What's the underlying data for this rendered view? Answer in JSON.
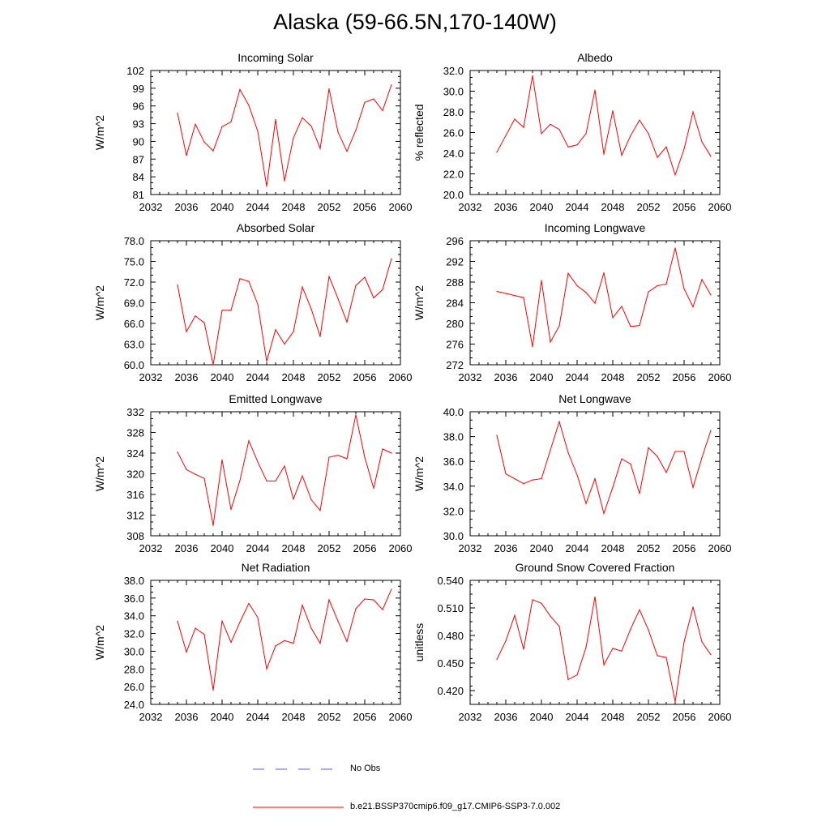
{
  "title": "Alaska (59-66.5N,170-140W)",
  "legend": [
    {
      "label": "No Obs",
      "color": "#5b5bd6",
      "dashed": true
    },
    {
      "label": "b.e21.BSSP370cmip6.f09_g17.CMIP6-SSP3-7.0.002",
      "color": "#ff0000",
      "dashed": false
    }
  ],
  "chart_data": [
    {
      "type": "line",
      "title": "Incoming Solar",
      "xlabel": "",
      "ylabel": "W/m^2",
      "xlim": [
        2032,
        2060
      ],
      "ylim": [
        81,
        102
      ],
      "xticks": [
        2032,
        2036,
        2040,
        2044,
        2048,
        2052,
        2056,
        2060
      ],
      "yticks": [
        "81",
        "84",
        "87",
        "90",
        "93",
        "96",
        "99",
        "102"
      ],
      "series": [
        {
          "color": "#ff0000",
          "x": [
            2035,
            2036,
            2037,
            2038,
            2039,
            2040,
            2041,
            2042,
            2043,
            2044,
            2045,
            2046,
            2047,
            2048,
            2049,
            2050,
            2051,
            2052,
            2053,
            2054,
            2055,
            2056,
            2057,
            2058,
            2059
          ],
          "y": [
            94.8,
            87.6,
            92.9,
            89.9,
            88.4,
            92.5,
            93.3,
            98.8,
            96.1,
            91.7,
            82.4,
            93.7,
            83.3,
            90.6,
            94.0,
            92.6,
            88.8,
            98.9,
            91.6,
            88.3,
            91.9,
            96.6,
            97.2,
            95.2,
            99.6
          ]
        }
      ]
    },
    {
      "type": "line",
      "title": "Albedo",
      "xlabel": "",
      "ylabel": "% reflected",
      "xlim": [
        2032,
        2060
      ],
      "ylim": [
        20.0,
        32.0
      ],
      "xticks": [
        2032,
        2036,
        2040,
        2044,
        2048,
        2052,
        2056,
        2060
      ],
      "yticks": [
        "20.0",
        "22.0",
        "24.0",
        "26.0",
        "28.0",
        "30.0",
        "32.0"
      ],
      "series": [
        {
          "color": "#ff0000",
          "x": [
            2035,
            2036,
            2037,
            2038,
            2039,
            2040,
            2041,
            2042,
            2043,
            2044,
            2045,
            2046,
            2047,
            2048,
            2049,
            2050,
            2051,
            2052,
            2053,
            2054,
            2055,
            2056,
            2057,
            2058,
            2059
          ],
          "y": [
            24.1,
            25.7,
            27.3,
            26.5,
            31.5,
            25.9,
            26.8,
            26.3,
            24.6,
            24.8,
            25.9,
            30.1,
            23.9,
            28.1,
            23.8,
            25.7,
            27.2,
            25.9,
            23.6,
            24.6,
            21.9,
            24.4,
            28.0,
            25.1,
            23.7
          ]
        }
      ]
    },
    {
      "type": "line",
      "title": "Absorbed Solar",
      "xlabel": "",
      "ylabel": "W/m^2",
      "xlim": [
        2032,
        2060
      ],
      "ylim": [
        60.0,
        78.0
      ],
      "xticks": [
        2032,
        2036,
        2040,
        2044,
        2048,
        2052,
        2056,
        2060
      ],
      "yticks": [
        "60.0",
        "63.0",
        "66.0",
        "69.0",
        "72.0",
        "75.0",
        "78.0"
      ],
      "series": [
        {
          "color": "#ff0000",
          "x": [
            2035,
            2036,
            2037,
            2038,
            2039,
            2040,
            2041,
            2042,
            2043,
            2044,
            2045,
            2046,
            2047,
            2048,
            2049,
            2050,
            2051,
            2052,
            2053,
            2054,
            2055,
            2056,
            2057,
            2058,
            2059
          ],
          "y": [
            71.6,
            64.8,
            67.1,
            66.1,
            60.0,
            67.9,
            67.9,
            72.5,
            72.1,
            68.8,
            60.5,
            65.1,
            63.0,
            64.8,
            71.3,
            68.1,
            64.1,
            72.8,
            69.6,
            66.2,
            71.5,
            72.7,
            69.7,
            70.9,
            75.4
          ]
        }
      ]
    },
    {
      "type": "line",
      "title": "Incoming Longwave",
      "xlabel": "",
      "ylabel": "W/m^2",
      "xlim": [
        2032,
        2060
      ],
      "ylim": [
        272,
        296
      ],
      "xticks": [
        2032,
        2036,
        2040,
        2044,
        2048,
        2052,
        2056,
        2060
      ],
      "yticks": [
        "272",
        "276",
        "280",
        "284",
        "288",
        "292",
        "296"
      ],
      "series": [
        {
          "color": "#ff0000",
          "x": [
            2035,
            2036,
            2037,
            2038,
            2039,
            2040,
            2041,
            2042,
            2043,
            2044,
            2045,
            2046,
            2047,
            2048,
            2049,
            2050,
            2051,
            2052,
            2053,
            2054,
            2055,
            2056,
            2057,
            2058,
            2059
          ],
          "y": [
            286.2,
            285.8,
            285.4,
            285.0,
            275.5,
            288.3,
            276.4,
            279.5,
            289.7,
            287.3,
            286.0,
            283.9,
            289.8,
            281.1,
            283.3,
            279.4,
            279.6,
            286.1,
            287.3,
            287.6,
            294.6,
            286.7,
            283.2,
            288.5,
            285.5
          ]
        }
      ]
    },
    {
      "type": "line",
      "title": "Emitted Longwave",
      "xlabel": "",
      "ylabel": "W/m^2",
      "xlim": [
        2032,
        2060
      ],
      "ylim": [
        308,
        332
      ],
      "xticks": [
        2032,
        2036,
        2040,
        2044,
        2048,
        2052,
        2056,
        2060
      ],
      "yticks": [
        "308",
        "312",
        "316",
        "320",
        "324",
        "328",
        "332"
      ],
      "series": [
        {
          "color": "#ff0000",
          "x": [
            2035,
            2036,
            2037,
            2038,
            2039,
            2040,
            2041,
            2042,
            2043,
            2044,
            2045,
            2046,
            2047,
            2048,
            2049,
            2050,
            2051,
            2052,
            2053,
            2054,
            2055,
            2056,
            2057,
            2058,
            2059
          ],
          "y": [
            324.2,
            320.8,
            319.9,
            319.1,
            310.0,
            322.7,
            313.1,
            318.7,
            326.4,
            322.3,
            318.6,
            318.6,
            321.5,
            315.1,
            319.6,
            315.0,
            312.9,
            323.2,
            323.6,
            322.9,
            331.4,
            323.2,
            317.2,
            324.8,
            324.0
          ]
        }
      ]
    },
    {
      "type": "line",
      "title": "Net Longwave",
      "xlabel": "",
      "ylabel": "W/m^2",
      "xlim": [
        2032,
        2060
      ],
      "ylim": [
        30.0,
        40.0
      ],
      "xticks": [
        2032,
        2036,
        2040,
        2044,
        2048,
        2052,
        2056,
        2060
      ],
      "yticks": [
        "30.0",
        "32.0",
        "34.0",
        "36.0",
        "38.0",
        "40.0"
      ],
      "series": [
        {
          "color": "#ff0000",
          "x": [
            2035,
            2036,
            2037,
            2038,
            2039,
            2040,
            2041,
            2042,
            2043,
            2044,
            2045,
            2046,
            2047,
            2048,
            2049,
            2050,
            2051,
            2052,
            2053,
            2054,
            2055,
            2056,
            2057,
            2058,
            2059
          ],
          "y": [
            38.1,
            35.0,
            34.6,
            34.2,
            34.5,
            34.6,
            36.9,
            39.2,
            36.7,
            34.9,
            32.6,
            34.6,
            31.8,
            33.9,
            36.2,
            35.8,
            33.4,
            37.1,
            36.4,
            35.1,
            36.8,
            36.8,
            33.9,
            36.3,
            38.5
          ]
        }
      ]
    },
    {
      "type": "line",
      "title": "Net Radiation",
      "xlabel": "",
      "ylabel": "W/m^2",
      "xlim": [
        2032,
        2060
      ],
      "ylim": [
        24.0,
        38.0
      ],
      "xticks": [
        2032,
        2036,
        2040,
        2044,
        2048,
        2052,
        2056,
        2060
      ],
      "yticks": [
        "24.0",
        "26.0",
        "28.0",
        "30.0",
        "32.0",
        "34.0",
        "36.0",
        "38.0"
      ],
      "series": [
        {
          "color": "#ff0000",
          "x": [
            2035,
            2036,
            2037,
            2038,
            2039,
            2040,
            2041,
            2042,
            2043,
            2044,
            2045,
            2046,
            2047,
            2048,
            2049,
            2050,
            2051,
            2052,
            2053,
            2054,
            2055,
            2056,
            2057,
            2058,
            2059
          ],
          "y": [
            33.4,
            29.9,
            32.6,
            31.9,
            25.6,
            33.4,
            31.0,
            33.3,
            35.4,
            33.8,
            28.0,
            30.6,
            31.2,
            30.9,
            35.2,
            32.6,
            30.9,
            35.8,
            33.4,
            31.1,
            34.8,
            35.9,
            35.8,
            34.7,
            37.0
          ]
        }
      ]
    },
    {
      "type": "line",
      "title": "Ground Snow Covered Fraction",
      "xlabel": "",
      "ylabel": "unitless",
      "xlim": [
        2032,
        2060
      ],
      "ylim": [
        0.405,
        0.54
      ],
      "xticks": [
        2032,
        2036,
        2040,
        2044,
        2048,
        2052,
        2056,
        2060
      ],
      "yticks": [
        "0.420",
        "0.450",
        "0.480",
        "0.510",
        "0.540"
      ],
      "series": [
        {
          "color": "#ff0000",
          "x": [
            2035,
            2036,
            2037,
            2038,
            2039,
            2040,
            2041,
            2042,
            2043,
            2044,
            2045,
            2046,
            2047,
            2048,
            2049,
            2050,
            2051,
            2052,
            2053,
            2054,
            2055,
            2056,
            2057,
            2058,
            2059
          ],
          "y": [
            0.454,
            0.474,
            0.502,
            0.465,
            0.519,
            0.515,
            0.501,
            0.49,
            0.432,
            0.437,
            0.467,
            0.522,
            0.448,
            0.466,
            0.463,
            0.487,
            0.508,
            0.486,
            0.458,
            0.456,
            0.408,
            0.473,
            0.511,
            0.473,
            0.459
          ]
        }
      ]
    }
  ]
}
